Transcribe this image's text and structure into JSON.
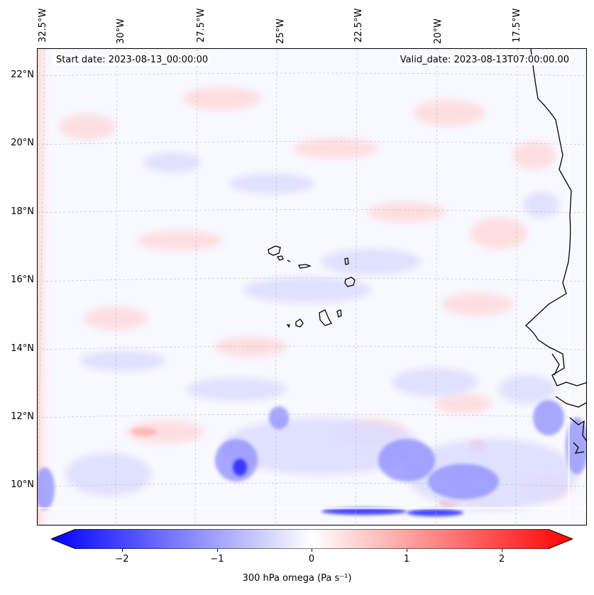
{
  "map": {
    "start_date": "Start date: 2023-08-13_00:00:00",
    "valid_date": "Valid_date: 2023-08-13T07:00:00.00",
    "lon_labels": [
      "32.5°W",
      "30°W",
      "27.5°W",
      "25°W",
      "22.5°W",
      "20°W",
      "17.5°W"
    ],
    "lat_labels": [
      "22°N",
      "20°N",
      "18°N",
      "16°N",
      "14°N",
      "12°N",
      "10°N"
    ],
    "field_colors": {
      "negative": "#0000ff",
      "positive": "#ff0000",
      "neutral": "#ffffff"
    },
    "coastline_color": "#000000"
  },
  "colorbar": {
    "ticks": [
      "−2",
      "−1",
      "0",
      "1",
      "2"
    ],
    "range": [
      -2.75,
      2.75
    ],
    "label": "300 hPa omega (Pa s⁻¹)",
    "extend": "both"
  }
}
